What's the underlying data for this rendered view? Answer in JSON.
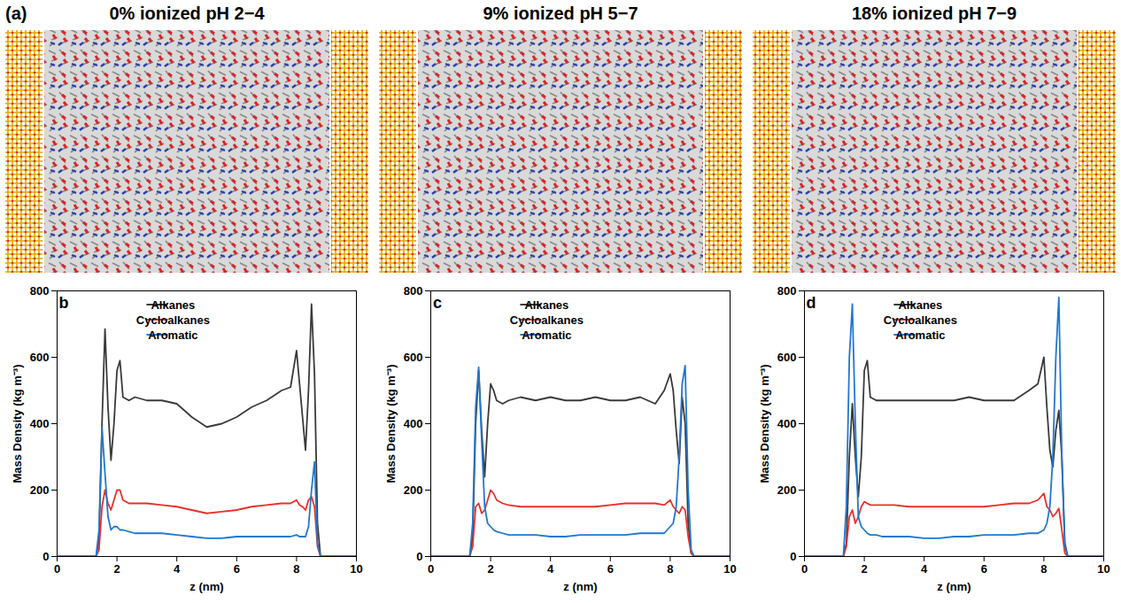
{
  "figure_label": "(a)",
  "snapshots": [
    {
      "title": "0% ionized pH 2−4"
    },
    {
      "title": "9% ionized pH 5−7"
    },
    {
      "title": "18% ionized pH 7−9"
    }
  ],
  "chart_data": [
    {
      "type": "line",
      "panel_label": "b",
      "x_label": "z (nm)",
      "y_label": "Mass Density (kg m⁻³)",
      "xlim": [
        0,
        10
      ],
      "xticks": [
        0,
        2,
        4,
        6,
        8,
        10
      ],
      "ylim": [
        0,
        800
      ],
      "yticks": [
        0,
        200,
        400,
        600,
        800
      ],
      "legend": "top",
      "x": [
        0,
        0.5,
        1.0,
        1.3,
        1.4,
        1.5,
        1.6,
        1.7,
        1.8,
        1.9,
        2.0,
        2.1,
        2.2,
        2.4,
        2.6,
        3.0,
        3.5,
        4.0,
        4.5,
        5.0,
        5.5,
        6.0,
        6.5,
        7.0,
        7.5,
        7.8,
        8.0,
        8.1,
        8.2,
        8.3,
        8.4,
        8.5,
        8.6,
        8.7,
        8.8,
        9.0,
        9.5,
        10
      ],
      "series": [
        {
          "name": "Alkanes",
          "color": "#3a3a3a",
          "values": [
            0,
            0,
            0,
            0,
            50,
            400,
            685,
            450,
            290,
            400,
            560,
            590,
            480,
            470,
            480,
            470,
            470,
            460,
            420,
            390,
            400,
            420,
            450,
            470,
            500,
            510,
            620,
            520,
            420,
            320,
            500,
            760,
            550,
            100,
            0,
            0,
            0,
            0
          ]
        },
        {
          "name": "Cycloalkanes",
          "color": "#e8302a",
          "values": [
            0,
            0,
            0,
            0,
            20,
            150,
            200,
            160,
            140,
            170,
            200,
            200,
            170,
            160,
            160,
            160,
            155,
            150,
            140,
            130,
            135,
            140,
            150,
            155,
            160,
            160,
            170,
            155,
            150,
            140,
            170,
            180,
            150,
            30,
            0,
            0,
            0,
            0
          ]
        },
        {
          "name": "Aromatic",
          "color": "#1f78d1",
          "values": [
            0,
            0,
            0,
            0,
            80,
            390,
            250,
            120,
            80,
            90,
            90,
            80,
            80,
            75,
            70,
            70,
            70,
            65,
            60,
            55,
            55,
            60,
            60,
            60,
            60,
            60,
            65,
            60,
            60,
            60,
            90,
            200,
            285,
            40,
            0,
            0,
            0,
            0
          ]
        }
      ]
    },
    {
      "type": "line",
      "panel_label": "c",
      "x_label": "z (nm)",
      "y_label": "Mass Density (kg m⁻³)",
      "xlim": [
        0,
        10
      ],
      "xticks": [
        0,
        2,
        4,
        6,
        8,
        10
      ],
      "ylim": [
        0,
        800
      ],
      "yticks": [
        0,
        200,
        400,
        600,
        800
      ],
      "legend": "top",
      "x": [
        0,
        0.5,
        1.0,
        1.3,
        1.4,
        1.5,
        1.6,
        1.7,
        1.8,
        1.9,
        2.0,
        2.1,
        2.2,
        2.4,
        2.6,
        3.0,
        3.5,
        4.0,
        4.5,
        5.0,
        5.5,
        6.0,
        6.5,
        7.0,
        7.5,
        7.8,
        8.0,
        8.1,
        8.2,
        8.3,
        8.4,
        8.5,
        8.6,
        8.7,
        8.8,
        9.0,
        9.5,
        10
      ],
      "series": [
        {
          "name": "Alkanes",
          "color": "#3a3a3a",
          "values": [
            0,
            0,
            0,
            0,
            60,
            400,
            560,
            380,
            240,
            400,
            520,
            500,
            470,
            460,
            470,
            480,
            470,
            480,
            470,
            470,
            480,
            470,
            470,
            480,
            460,
            500,
            550,
            500,
            380,
            280,
            480,
            400,
            100,
            10,
            0,
            0,
            0,
            0
          ]
        },
        {
          "name": "Cycloalkanes",
          "color": "#e8302a",
          "values": [
            0,
            0,
            0,
            0,
            30,
            150,
            160,
            130,
            140,
            170,
            200,
            190,
            170,
            160,
            155,
            150,
            150,
            150,
            150,
            150,
            150,
            155,
            160,
            160,
            160,
            155,
            170,
            150,
            140,
            130,
            150,
            140,
            60,
            10,
            0,
            0,
            0,
            0
          ]
        },
        {
          "name": "Aromatic",
          "color": "#1f78d1",
          "values": [
            0,
            0,
            0,
            0,
            100,
            450,
            570,
            350,
            150,
            100,
            90,
            80,
            75,
            70,
            65,
            65,
            65,
            60,
            60,
            65,
            65,
            65,
            65,
            70,
            70,
            70,
            90,
            100,
            150,
            300,
            520,
            575,
            200,
            20,
            0,
            0,
            0,
            0
          ]
        }
      ]
    },
    {
      "type": "line",
      "panel_label": "d",
      "x_label": "z (nm)",
      "y_label": "Mass Density (kg m⁻³)",
      "xlim": [
        0,
        10
      ],
      "xticks": [
        0,
        2,
        4,
        6,
        8,
        10
      ],
      "ylim": [
        0,
        800
      ],
      "yticks": [
        0,
        200,
        400,
        600,
        800
      ],
      "legend": "top",
      "x": [
        0,
        0.5,
        1.0,
        1.3,
        1.4,
        1.5,
        1.6,
        1.7,
        1.8,
        1.9,
        2.0,
        2.1,
        2.2,
        2.4,
        2.6,
        3.0,
        3.5,
        4.0,
        4.5,
        5.0,
        5.5,
        6.0,
        6.5,
        7.0,
        7.5,
        7.8,
        8.0,
        8.1,
        8.2,
        8.3,
        8.4,
        8.5,
        8.6,
        8.7,
        8.8,
        9.0,
        9.5,
        10
      ],
      "series": [
        {
          "name": "Alkanes",
          "color": "#3a3a3a",
          "values": [
            0,
            0,
            0,
            0,
            40,
            300,
            460,
            300,
            180,
            300,
            560,
            590,
            480,
            470,
            470,
            470,
            470,
            470,
            470,
            470,
            480,
            470,
            470,
            470,
            500,
            520,
            600,
            450,
            320,
            270,
            380,
            440,
            300,
            40,
            0,
            0,
            0,
            0
          ]
        },
        {
          "name": "Cycloalkanes",
          "color": "#e8302a",
          "values": [
            0,
            0,
            0,
            0,
            30,
            120,
            140,
            100,
            120,
            150,
            165,
            160,
            155,
            155,
            155,
            155,
            150,
            150,
            150,
            150,
            150,
            150,
            155,
            160,
            160,
            170,
            190,
            150,
            140,
            120,
            130,
            145,
            80,
            10,
            0,
            0,
            0,
            0
          ]
        },
        {
          "name": "Aromatic",
          "color": "#1f78d1",
          "values": [
            0,
            0,
            0,
            0,
            150,
            600,
            760,
            400,
            120,
            90,
            80,
            70,
            65,
            65,
            60,
            60,
            60,
            55,
            55,
            60,
            60,
            65,
            65,
            65,
            70,
            70,
            80,
            100,
            150,
            300,
            600,
            780,
            300,
            30,
            0,
            0,
            0,
            0
          ]
        }
      ]
    }
  ]
}
